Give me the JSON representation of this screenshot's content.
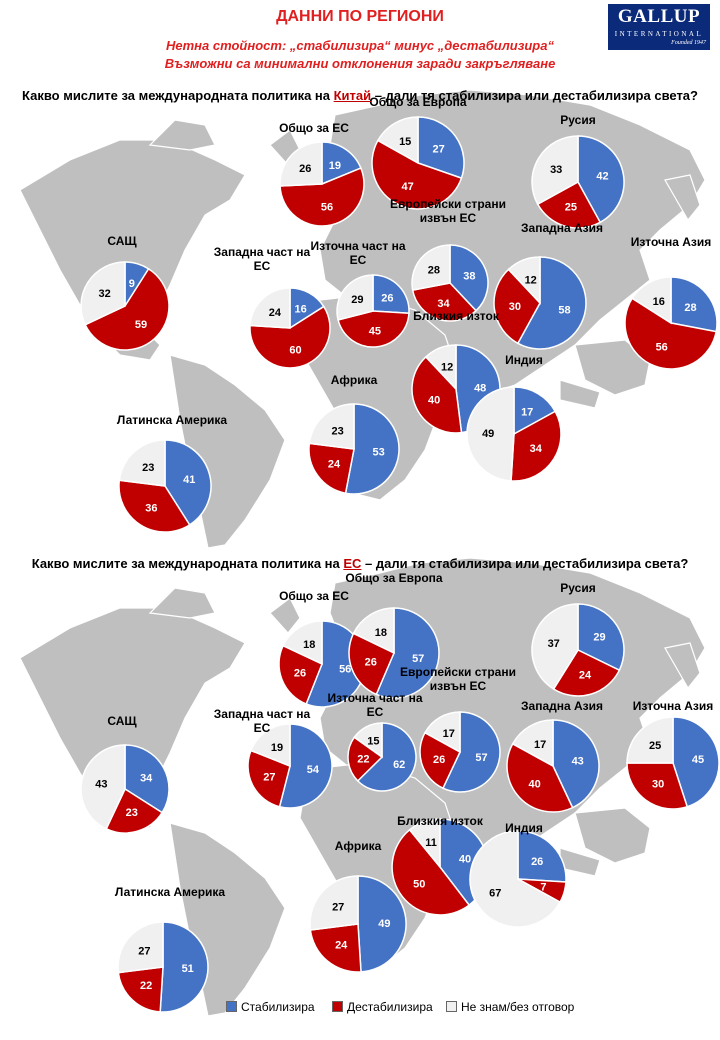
{
  "header": {
    "title": "ДАННИ ПО РЕГИОНИ",
    "subtitle1": "Нетна стойност: „стабилизира“ минус „дестабилизира“",
    "subtitle2": "Възможни са минимални отклонения заради закръгляване"
  },
  "logo": {
    "word": "GALLUP",
    "word2": "INTERNATIONAL",
    "est": "Founded 1947"
  },
  "questions": [
    {
      "before": "Какво мислите за международната политика на ",
      "highlight": "Китай",
      "after": " – дали тя стабилизира или дестабилизира света?"
    },
    {
      "before": "Какво мислите за международната политика на ",
      "highlight": "ЕС",
      "after": " – дали тя стабилизира или дестабилизира света?"
    }
  ],
  "legend": {
    "stabilizes": "Стабилизира",
    "destabilizes": "Дестабилизира",
    "dont_know": "Не знам/без отговор"
  },
  "colors": {
    "stabilizes": "#4472c4",
    "destabilizes": "#c00000",
    "dont_know": "#f0f0f0",
    "map": "#bfbfbf",
    "title": "#e02020"
  },
  "chart_data": [
    {
      "type": "pie",
      "title": "Какво мислите за международната политика на Китай – дали тя стабилизира или дестабилизира света?",
      "series_names": [
        "Стабилизира",
        "Дестабилизира",
        "Не знам/без отговор"
      ],
      "regions": [
        {
          "label": "Общо за ЕС",
          "values": [
            19,
            56,
            26
          ]
        },
        {
          "label": "Общо за Европа",
          "values": [
            27,
            47,
            15
          ]
        },
        {
          "label": "Русия",
          "values": [
            42,
            25,
            33
          ]
        },
        {
          "label": "САЩ",
          "values": [
            9,
            59,
            32
          ]
        },
        {
          "label": "Западна част на ЕС",
          "values": [
            16,
            60,
            24
          ]
        },
        {
          "label": "Източна част на ЕС",
          "values": [
            26,
            45,
            29
          ]
        },
        {
          "label": "Европейски страни извън ЕС",
          "values": [
            38,
            34,
            28
          ]
        },
        {
          "label": "Западна Азия",
          "values": [
            58,
            30,
            12
          ]
        },
        {
          "label": "Източна Азия",
          "values": [
            28,
            56,
            16
          ]
        },
        {
          "label": "Близкия изток",
          "values": [
            48,
            40,
            12
          ]
        },
        {
          "label": "Индия",
          "values": [
            17,
            34,
            49
          ]
        },
        {
          "label": "Африка",
          "values": [
            53,
            24,
            23
          ]
        },
        {
          "label": "Латинска Америка",
          "values": [
            41,
            36,
            23
          ]
        }
      ]
    },
    {
      "type": "pie",
      "title": "Какво мислите за международната политика на ЕС – дали тя стабилизира или дестабилизира света?",
      "series_names": [
        "Стабилизира",
        "Дестабилизира",
        "Не знам/без отговор"
      ],
      "regions": [
        {
          "label": "Общо за ЕС",
          "values": [
            56,
            26,
            18
          ]
        },
        {
          "label": "Общо за Европа",
          "values": [
            57,
            26,
            18
          ]
        },
        {
          "label": "Русия",
          "values": [
            29,
            24,
            37
          ]
        },
        {
          "label": "САЩ",
          "values": [
            34,
            23,
            43
          ]
        },
        {
          "label": "Западна част на ЕС",
          "values": [
            54,
            27,
            19
          ]
        },
        {
          "label": "Източна част на ЕС",
          "values": [
            62,
            22,
            15
          ]
        },
        {
          "label": "Европейски страни извън ЕС",
          "values": [
            57,
            26,
            17
          ]
        },
        {
          "label": "Западна Азия",
          "values": [
            43,
            40,
            17
          ]
        },
        {
          "label": "Източна Азия",
          "values": [
            45,
            30,
            25
          ]
        },
        {
          "label": "Близкия изток",
          "values": [
            40,
            50,
            11
          ]
        },
        {
          "label": "Индия",
          "values": [
            26,
            7,
            67
          ]
        },
        {
          "label": "Африка",
          "values": [
            49,
            24,
            27
          ]
        },
        {
          "label": "Латинска Америка",
          "values": [
            51,
            22,
            27
          ]
        }
      ]
    }
  ]
}
